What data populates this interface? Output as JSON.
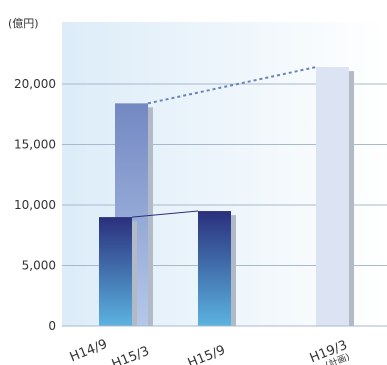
{
  "chart_data": {
    "type": "bar",
    "unit_label": "(億円)",
    "ylim": [
      0,
      22500
    ],
    "yticks": [
      0,
      5000,
      10000,
      15000,
      20000
    ],
    "ytick_labels": [
      "0",
      "5,000",
      "10,000",
      "15,000",
      "20,000"
    ],
    "grid": true,
    "bars": [
      {
        "x_label": "H14/9",
        "value": 9000,
        "style": "dark-gradient"
      },
      {
        "x_label": "H15/3",
        "value": 18400,
        "style": "medium-gradient"
      },
      {
        "x_label": "H15/9",
        "value": 9500,
        "style": "dark-gradient"
      },
      {
        "x_label": "H19/3",
        "x_sublabel": "(計画)",
        "value": 21400,
        "style": "light-pale"
      }
    ],
    "connectors": [
      {
        "from": 0,
        "to": 2,
        "style": "solid"
      },
      {
        "from": 1,
        "to": 3,
        "style": "dashed"
      }
    ],
    "colors": {
      "dark_top": "#2a2f7c",
      "dark_bottom": "#5bb3e0",
      "medium_top": "#7388c2",
      "medium_bottom": "#b5c8ea",
      "light": "#dce4f4",
      "shadow": "#b3bac7",
      "grid": "#aab8cc",
      "dashed": "#6a82b8",
      "solid": "#2a2f7c"
    }
  }
}
